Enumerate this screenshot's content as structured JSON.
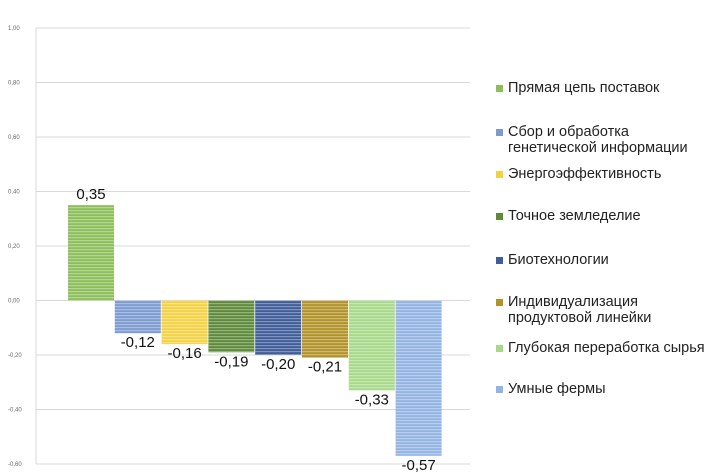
{
  "chart_data": {
    "type": "bar",
    "title": "",
    "xlabel": "",
    "ylabel": "",
    "ylim": [
      -0.6,
      1.0
    ],
    "yticks": [
      "1,00",
      "0,80",
      "0,60",
      "0,40",
      "0,20",
      "0,00",
      "-0,20",
      "-0,40",
      "-0,60"
    ],
    "ytick_values": [
      1.0,
      0.8,
      0.6,
      0.4,
      0.2,
      0.0,
      -0.2,
      -0.4,
      -0.6
    ],
    "grid": true,
    "legend_position": "right",
    "series": [
      {
        "name": "Прямая цепь поставок",
        "value": 0.35,
        "label": "0,35",
        "color": "#8cbf5a"
      },
      {
        "name": "Сбор и обработка генетической информации",
        "value": -0.12,
        "label": "-0,12",
        "color": "#7d9bd0"
      },
      {
        "name": "Энергоэффективность",
        "value": -0.16,
        "label": "-0,16",
        "color": "#f3d346"
      },
      {
        "name": "Точное земледелие",
        "value": -0.19,
        "label": "-0,19",
        "color": "#5e8a3a"
      },
      {
        "name": "Биотехнологии",
        "value": -0.2,
        "label": "-0,20",
        "color": "#3f5d99"
      },
      {
        "name": "Индивидуализация продуктовой линейки",
        "value": -0.21,
        "label": "-0,21",
        "color": "#b2922a"
      },
      {
        "name": "Глубокая переработка сырья",
        "value": -0.33,
        "label": "-0,33",
        "color": "#a8d98a"
      },
      {
        "name": "Умные фермы",
        "value": -0.57,
        "label": "-0,57",
        "color": "#93b4e2"
      }
    ]
  }
}
